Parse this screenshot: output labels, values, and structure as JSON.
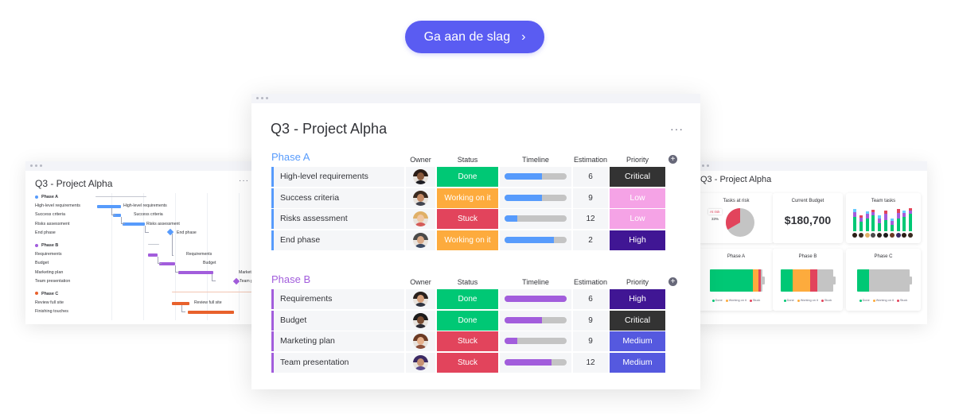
{
  "cta": {
    "label": "Ga aan de slag",
    "chevron": "›",
    "color": "#5a5cf2"
  },
  "colors": {
    "done": "#00c875",
    "working": "#fdab3d",
    "stuck": "#e2445c",
    "critical": "#333333",
    "low": "#f5a3e6",
    "high": "#401694",
    "medium": "#5559df",
    "phase_a": "#579bfc",
    "phase_b": "#a25ddc",
    "phase_c": "#e8612c"
  },
  "main_board": {
    "title": "Q3 - Project Alpha",
    "more_icon": "more-horizontal-icon",
    "add_column_icon": "plus-icon",
    "add_column_glyph": "+",
    "columns": [
      "Owner",
      "Status",
      "Timeline",
      "Estimation",
      "Priority"
    ],
    "groups": [
      {
        "name": "Phase A",
        "color": "#579bfc",
        "items": [
          {
            "name": "High-level requirements",
            "status": "Done",
            "timeline_progress": 0.6,
            "estimation": "6",
            "priority": "Critical"
          },
          {
            "name": "Success criteria",
            "status": "Working on it",
            "timeline_progress": 0.6,
            "estimation": "9",
            "priority": "Low"
          },
          {
            "name": "Risks assessment",
            "status": "Stuck",
            "timeline_progress": 0.2,
            "estimation": "12",
            "priority": "Low"
          },
          {
            "name": "End phase",
            "status": "Working on it",
            "timeline_progress": 0.8,
            "estimation": "2",
            "priority": "High"
          }
        ]
      },
      {
        "name": "Phase B",
        "color": "#a25ddc",
        "items": [
          {
            "name": "Requirements",
            "status": "Done",
            "timeline_progress": 1.0,
            "estimation": "6",
            "priority": "High"
          },
          {
            "name": "Budget",
            "status": "Done",
            "timeline_progress": 0.6,
            "estimation": "9",
            "priority": "Critical"
          },
          {
            "name": "Marketing plan",
            "status": "Stuck",
            "timeline_progress": 0.2,
            "estimation": "9",
            "priority": "Medium"
          },
          {
            "name": "Team presentation",
            "status": "Stuck",
            "timeline_progress": 0.75,
            "estimation": "12",
            "priority": "Medium"
          }
        ]
      }
    ]
  },
  "gantt_view": {
    "title": "Q3 - Project Alpha",
    "more_icon": "more-horizontal-icon",
    "more_glyph": "···",
    "groups": [
      {
        "name": "Phase A",
        "color": "#579bfc",
        "items": [
          "High-level requirements",
          "Success criteria",
          "Risks assessment",
          "End phase"
        ]
      },
      {
        "name": "Phase B",
        "color": "#a25ddc",
        "items": [
          "Requirements",
          "Budget",
          "Marketing plan",
          "Team presentation"
        ]
      },
      {
        "name": "Phase C",
        "color": "#e8612c",
        "items": [
          "Review full site",
          "Finishing touches"
        ]
      }
    ],
    "bar_labels": [
      "High-level requirements",
      "Success criteria",
      "Risks assessment",
      "End phase",
      "Requirements",
      "Budget",
      "Marketing plan",
      "Team presentation",
      "Review full site",
      "Finishing"
    ]
  },
  "dashboard_view": {
    "title": "Q3 - Project Alpha",
    "widgets": {
      "tasks_at_risk": {
        "title": "Tasks at risk",
        "badge": "At risk",
        "percent": "33%"
      },
      "current_budget": {
        "title": "Current Budget",
        "value": "$180,700"
      },
      "team_tasks": {
        "title": "Team tasks"
      },
      "phase_a": {
        "title": "Phase A"
      },
      "phase_b": {
        "title": "Phase B"
      },
      "phase_c": {
        "title": "Phase C"
      }
    },
    "legend": {
      "done": "Done",
      "working": "Working on it",
      "stuck": "Stuck"
    }
  }
}
